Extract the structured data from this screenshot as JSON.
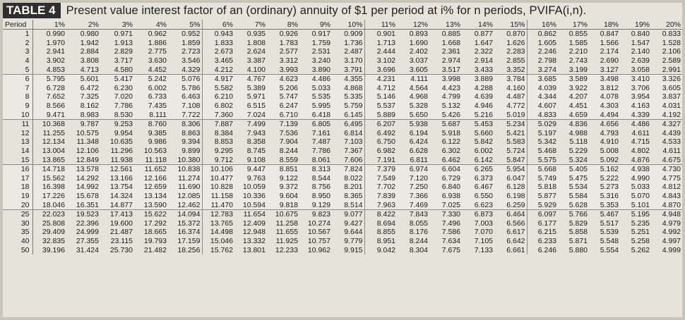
{
  "title": {
    "table_label": "TABLE 4",
    "text": "Present value interest factor of an (ordinary) annuity of $1 per period at i% for n periods, PVIFA(i,n)."
  },
  "table": {
    "period_header": "Period",
    "rate_headers": [
      "1%",
      "2%",
      "3%",
      "4%",
      "5%",
      "6%",
      "7%",
      "8%",
      "9%",
      "10%",
      "11%",
      "12%",
      "13%",
      "14%",
      "15%",
      "16%",
      "17%",
      "18%",
      "19%",
      "20%"
    ],
    "rows": [
      {
        "n": "1",
        "values": [
          "0.990",
          "0.980",
          "0.971",
          "0.962",
          "0.952",
          "0.943",
          "0.935",
          "0.926",
          "0.917",
          "0.909",
          "0.901",
          "0.893",
          "0.885",
          "0.877",
          "0.870",
          "0.862",
          "0.855",
          "0.847",
          "0.840",
          "0.833"
        ]
      },
      {
        "n": "2",
        "values": [
          "1.970",
          "1.942",
          "1.913",
          "1.886",
          "1.859",
          "1.833",
          "1.808",
          "1.783",
          "1.759",
          "1.736",
          "1.713",
          "1.690",
          "1.668",
          "1.647",
          "1.626",
          "1.605",
          "1.585",
          "1.566",
          "1.547",
          "1.528"
        ]
      },
      {
        "n": "3",
        "values": [
          "2.941",
          "2.884",
          "2.829",
          "2.775",
          "2.723",
          "2.673",
          "2.624",
          "2.577",
          "2.531",
          "2.487",
          "2.444",
          "2.402",
          "2.361",
          "2.322",
          "2.283",
          "2.246",
          "2.210",
          "2.174",
          "2.140",
          "2.106"
        ]
      },
      {
        "n": "4",
        "values": [
          "3.902",
          "3.808",
          "3.717",
          "3.630",
          "3.546",
          "3.465",
          "3.387",
          "3.312",
          "3.240",
          "3.170",
          "3.102",
          "3.037",
          "2.974",
          "2.914",
          "2.855",
          "2.798",
          "2.743",
          "2.690",
          "2.639",
          "2.589"
        ]
      },
      {
        "n": "5",
        "values": [
          "4.853",
          "4.713",
          "4.580",
          "4.452",
          "4.329",
          "4.212",
          "4.100",
          "3.993",
          "3.890",
          "3.791",
          "3.696",
          "3.605",
          "3.517",
          "3.433",
          "3.352",
          "3.274",
          "3.199",
          "3.127",
          "3.058",
          "2.991"
        ]
      },
      {
        "n": "6",
        "values": [
          "5.795",
          "5.601",
          "5.417",
          "5.242",
          "5.076",
          "4.917",
          "4.767",
          "4.623",
          "4.486",
          "4.355",
          "4.231",
          "4.111",
          "3.998",
          "3.889",
          "3.784",
          "3.685",
          "3.589",
          "3.498",
          "3.410",
          "3.326"
        ]
      },
      {
        "n": "7",
        "values": [
          "6.728",
          "6.472",
          "6.230",
          "6.002",
          "5.786",
          "5.582",
          "5.389",
          "5.206",
          "5.033",
          "4.868",
          "4.712",
          "4.564",
          "4.423",
          "4.288",
          "4.160",
          "4.039",
          "3.922",
          "3.812",
          "3.706",
          "3.605"
        ]
      },
      {
        "n": "8",
        "values": [
          "7.652",
          "7.325",
          "7.020",
          "6.733",
          "6.463",
          "6.210",
          "5.971",
          "5.747",
          "5.535",
          "5.335",
          "5.146",
          "4.968",
          "4.799",
          "4.639",
          "4.487",
          "4.344",
          "4.207",
          "4.078",
          "3.954",
          "3.837"
        ]
      },
      {
        "n": "9",
        "values": [
          "8.566",
          "8.162",
          "7.786",
          "7.435",
          "7.108",
          "6.802",
          "6.515",
          "6.247",
          "5.995",
          "5.759",
          "5.537",
          "5.328",
          "5.132",
          "4.946",
          "4.772",
          "4.607",
          "4.451",
          "4.303",
          "4.163",
          "4.031"
        ]
      },
      {
        "n": "10",
        "values": [
          "9.471",
          "8.983",
          "8.530",
          "8.111",
          "7.722",
          "7.360",
          "7.024",
          "6.710",
          "6.418",
          "6.145",
          "5.889",
          "5.650",
          "5.426",
          "5.216",
          "5.019",
          "4.833",
          "4.659",
          "4.494",
          "4.339",
          "4.192"
        ]
      },
      {
        "n": "11",
        "values": [
          "10.368",
          "9.787",
          "9.253",
          "8.760",
          "8.306",
          "7.887",
          "7.499",
          "7.139",
          "6.805",
          "6.495",
          "6.207",
          "5.938",
          "5.687",
          "5.453",
          "5.234",
          "5.029",
          "4.836",
          "4.656",
          "4.486",
          "4.327"
        ]
      },
      {
        "n": "12",
        "values": [
          "11.255",
          "10.575",
          "9.954",
          "9.385",
          "8.863",
          "8.384",
          "7.943",
          "7.536",
          "7.161",
          "6.814",
          "6.492",
          "6.194",
          "5.918",
          "5.660",
          "5.421",
          "5.197",
          "4.988",
          "4.793",
          "4.611",
          "4.439"
        ]
      },
      {
        "n": "13",
        "values": [
          "12.134",
          "11.348",
          "10.635",
          "9.986",
          "9.394",
          "8.853",
          "8.358",
          "7.904",
          "7.487",
          "7.103",
          "6.750",
          "6.424",
          "6.122",
          "5.842",
          "5.583",
          "5.342",
          "5.118",
          "4.910",
          "4.715",
          "4.533"
        ]
      },
      {
        "n": "14",
        "values": [
          "13.004",
          "12.106",
          "11.296",
          "10.563",
          "9.899",
          "9.295",
          "8.745",
          "8.244",
          "7.786",
          "7.367",
          "6.982",
          "6.628",
          "6.302",
          "6.002",
          "5.724",
          "5.468",
          "5.229",
          "5.008",
          "4.802",
          "4.611"
        ]
      },
      {
        "n": "15",
        "values": [
          "13.865",
          "12.849",
          "11.938",
          "11.118",
          "10.380",
          "9.712",
          "9.108",
          "8.559",
          "8.061",
          "7.606",
          "7.191",
          "6.811",
          "6.462",
          "6.142",
          "5.847",
          "5.575",
          "5.324",
          "5.092",
          "4.876",
          "4.675"
        ]
      },
      {
        "n": "16",
        "values": [
          "14.718",
          "13.578",
          "12.561",
          "11.652",
          "10.838",
          "10.106",
          "9.447",
          "8.851",
          "8.313",
          "7.824",
          "7.379",
          "6.974",
          "6.604",
          "6.265",
          "5.954",
          "5.668",
          "5.405",
          "5.162",
          "4.938",
          "4.730"
        ]
      },
      {
        "n": "17",
        "values": [
          "15.562",
          "14.292",
          "13.166",
          "12.166",
          "11.274",
          "10.477",
          "9.763",
          "9.122",
          "8.544",
          "8.022",
          "7.549",
          "7.120",
          "6.729",
          "6.373",
          "6.047",
          "5.749",
          "5.475",
          "5.222",
          "4.990",
          "4.775"
        ]
      },
      {
        "n": "18",
        "values": [
          "16.398",
          "14.992",
          "13.754",
          "12.659",
          "11.690",
          "10.828",
          "10.059",
          "9.372",
          "8.756",
          "8.201",
          "7.702",
          "7.250",
          "6.840",
          "6.467",
          "6.128",
          "5.818",
          "5.534",
          "5.273",
          "5.033",
          "4.812"
        ]
      },
      {
        "n": "19",
        "values": [
          "17.226",
          "15.678",
          "14.324",
          "13.134",
          "12.085",
          "11.158",
          "10.336",
          "9.604",
          "8.950",
          "8.365",
          "7.839",
          "7.366",
          "6.938",
          "6.550",
          "6.198",
          "5.877",
          "5.584",
          "5.316",
          "5.070",
          "4.843"
        ]
      },
      {
        "n": "20",
        "values": [
          "18.046",
          "16.351",
          "14.877",
          "13.590",
          "12.462",
          "11.470",
          "10.594",
          "9.818",
          "9.129",
          "8.514",
          "7.963",
          "7.469",
          "7.025",
          "6.623",
          "6.259",
          "5.929",
          "5.628",
          "5.353",
          "5.101",
          "4.870"
        ]
      },
      {
        "n": "25",
        "values": [
          "22.023",
          "19.523",
          "17.413",
          "15.622",
          "14.094",
          "12.783",
          "11.654",
          "10.675",
          "9.823",
          "9.077",
          "8.422",
          "7.843",
          "7.330",
          "6.873",
          "6.464",
          "6.097",
          "5.766",
          "5.467",
          "5.195",
          "4.948"
        ]
      },
      {
        "n": "30",
        "values": [
          "25.808",
          "22.396",
          "19.600",
          "17.292",
          "15.372",
          "13.765",
          "12.409",
          "11.258",
          "10.274",
          "9.427",
          "8.694",
          "8.055",
          "7.496",
          "7.003",
          "6.566",
          "6.177",
          "5.829",
          "5.517",
          "5.235",
          "4.979"
        ]
      },
      {
        "n": "35",
        "values": [
          "29.409",
          "24.999",
          "21.487",
          "18.665",
          "16.374",
          "14.498",
          "12.948",
          "11.655",
          "10.567",
          "9.644",
          "8.855",
          "8.176",
          "7.586",
          "7.070",
          "6.617",
          "6.215",
          "5.858",
          "5.539",
          "5.251",
          "4.992"
        ]
      },
      {
        "n": "40",
        "values": [
          "32.835",
          "27.355",
          "23.115",
          "19.793",
          "17.159",
          "15.046",
          "13.332",
          "11.925",
          "10.757",
          "9.779",
          "8.951",
          "8.244",
          "7.634",
          "7.105",
          "6.642",
          "6.233",
          "5.871",
          "5.548",
          "5.258",
          "4.997"
        ]
      },
      {
        "n": "50",
        "values": [
          "39.196",
          "31.424",
          "25.730",
          "21.482",
          "18.256",
          "15.762",
          "13.801",
          "12.233",
          "10.962",
          "9.915",
          "9.042",
          "8.304",
          "7.675",
          "7.133",
          "6.661",
          "6.246",
          "5.880",
          "5.554",
          "5.262",
          "4.999"
        ]
      }
    ]
  }
}
